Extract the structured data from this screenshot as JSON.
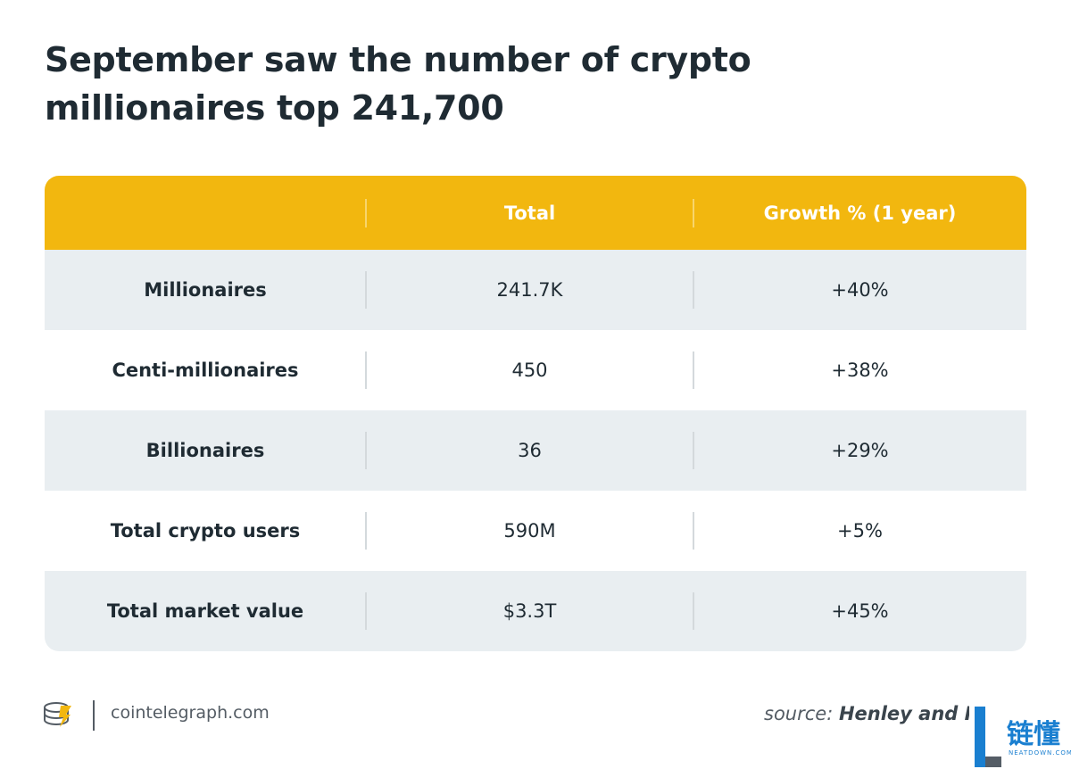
{
  "title": "September saw the number of crypto millionaires top 241,700",
  "chart_data": {
    "type": "table",
    "title": "September saw the number of crypto millionaires top 241,700",
    "columns": [
      "",
      "Total",
      "Growth % (1 year)"
    ],
    "rows": [
      [
        "Millionaires",
        "241.7K",
        "+40%"
      ],
      [
        "Centi-millionaires",
        "450",
        "+38%"
      ],
      [
        "Billionaires",
        "36",
        "+29%"
      ],
      [
        "Total crypto users",
        "590M",
        "+5%"
      ],
      [
        "Total market value",
        "$3.3T",
        "+45%"
      ]
    ]
  },
  "footer": {
    "site": "cointelegraph.com",
    "source_prefix": "source:",
    "source_name": "Henley and Partners"
  },
  "watermark": {
    "chinese": "链懂",
    "english": "NEATDOWN.COM"
  },
  "colors": {
    "header_bg": "#f2b70f",
    "stripe_bg": "#e9eef1",
    "plain_bg": "#ffffff",
    "title": "#1f2b33",
    "watermark": "#1a7fd0"
  },
  "icons": {
    "brand_logo": "cointelegraph-logo-icon",
    "watermark_logo": "neatdown-l-logo-icon"
  }
}
